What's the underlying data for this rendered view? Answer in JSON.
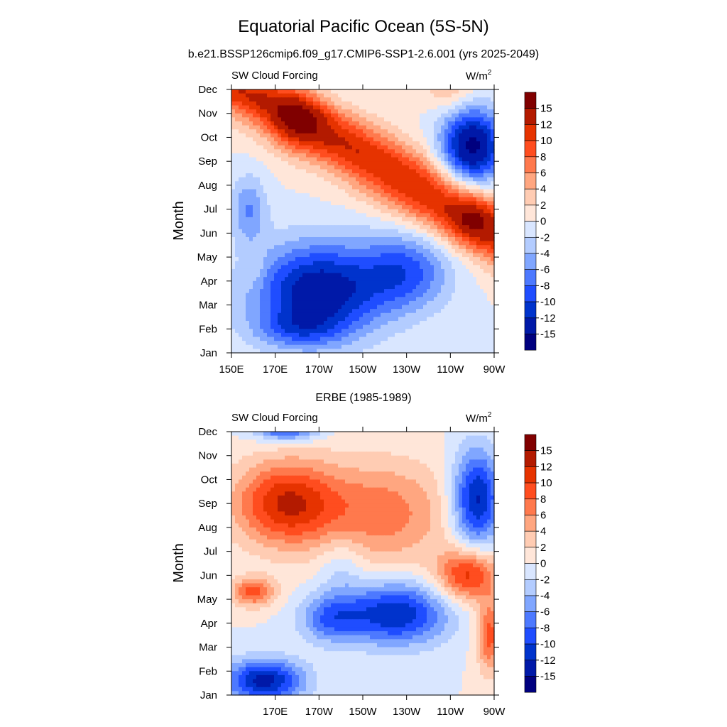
{
  "figure": {
    "title": "Equatorial Pacific Ocean (5S-5N)",
    "colorbar_labels": [
      "15",
      "12",
      "10",
      "8",
      "6",
      "4",
      "2",
      "0",
      "-2",
      "-4",
      "-6",
      "-8",
      "-10",
      "-12",
      "-15"
    ],
    "colors": [
      "#00007f",
      "#0019a8",
      "#0033cc",
      "#1f4dff",
      "#4d79ff",
      "#80a6ff",
      "#b3ccff",
      "#d9e6ff",
      "#ffe6d9",
      "#ffccb3",
      "#ffa680",
      "#ff794d",
      "#ff4d1f",
      "#e63300",
      "#b31a00",
      "#800000"
    ]
  },
  "chart_data": [
    {
      "type": "heatmap",
      "title": "b.e21.BSSP126cmip6.f09_g17.CMIP6-SSP1-2.6.001 (yrs 2025-2049)",
      "left_label": "SW Cloud Forcing",
      "units_label": "W/m",
      "units_sup": "2",
      "ylabel": "Month",
      "x_ticks": [
        "150E",
        "170E",
        "170W",
        "150W",
        "130W",
        "110W",
        "90W"
      ],
      "y_ticks": [
        "Jan",
        "Feb",
        "Mar",
        "Apr",
        "May",
        "Jun",
        "Jul",
        "Aug",
        "Sep",
        "Oct",
        "Nov",
        "Dec"
      ],
      "x_range_lon": [
        150,
        270
      ],
      "levels": [
        -15,
        -12,
        -10,
        -8,
        -6,
        -4,
        -2,
        0,
        2,
        4,
        6,
        8,
        10,
        12,
        15
      ],
      "features": [
        {
          "kind": "warm_band",
          "lon": [
            152,
            177,
            200,
            225,
            247,
            270
          ],
          "month": [
            11.0,
            10.0,
            8.8,
            7.5,
            6.2,
            5.0
          ],
          "width_lon": 28,
          "amp": 12
        },
        {
          "kind": "blob",
          "lon": 180,
          "month": 9.8,
          "rx": 12,
          "ry": 1.3,
          "amp": 6
        },
        {
          "kind": "blob",
          "lon": 260,
          "month": 5.6,
          "rx": 10,
          "ry": 1.0,
          "amp": 5
        },
        {
          "kind": "blob",
          "lon": 250,
          "month": 11.0,
          "rx": 12,
          "ry": 0.9,
          "amp": 4
        },
        {
          "kind": "blob",
          "lon": 190,
          "month": 2.6,
          "rx": 30,
          "ry": 2.0,
          "amp": -14
        },
        {
          "kind": "blob",
          "lon": 230,
          "month": 3.4,
          "rx": 20,
          "ry": 1.6,
          "amp": -8
        },
        {
          "kind": "blob",
          "lon": 180,
          "month": 1.0,
          "rx": 20,
          "ry": 0.8,
          "amp": -5
        },
        {
          "kind": "blob",
          "lon": 260,
          "month": 8.6,
          "rx": 14,
          "ry": 1.6,
          "amp": -16
        },
        {
          "kind": "blob",
          "lon": 158,
          "month": 6.0,
          "rx": 8,
          "ry": 1.4,
          "amp": -6
        },
        {
          "kind": "blob",
          "lon": 160,
          "month": 3.5,
          "rx": 6,
          "ry": 0.8,
          "amp": 2
        }
      ]
    },
    {
      "type": "heatmap",
      "title": "ERBE (1985-1989)",
      "left_label": "SW Cloud Forcing",
      "units_label": "W/m",
      "units_sup": "2",
      "ylabel": "Month",
      "x_ticks": [
        "170E",
        "170W",
        "150W",
        "130W",
        "110W",
        "90W"
      ],
      "y_ticks": [
        "Jan",
        "Feb",
        "Mar",
        "Apr",
        "May",
        "Jun",
        "Jul",
        "Aug",
        "Sep",
        "Oct",
        "Nov",
        "Dec"
      ],
      "x_range_lon": [
        150,
        270
      ],
      "levels": [
        -15,
        -12,
        -10,
        -8,
        -6,
        -4,
        -2,
        0,
        2,
        4,
        6,
        8,
        10,
        12,
        15
      ],
      "features": [
        {
          "kind": "blob",
          "lon": 175,
          "month": 8.0,
          "rx": 24,
          "ry": 1.8,
          "amp": 12
        },
        {
          "kind": "blob",
          "lon": 220,
          "month": 7.6,
          "rx": 30,
          "ry": 2.2,
          "amp": 7
        },
        {
          "kind": "blob",
          "lon": 160,
          "month": 4.3,
          "rx": 10,
          "ry": 0.6,
          "amp": 9
        },
        {
          "kind": "blob",
          "lon": 258,
          "month": 5.0,
          "rx": 14,
          "ry": 1.1,
          "amp": 11
        },
        {
          "kind": "blob",
          "lon": 268,
          "month": 2.5,
          "rx": 6,
          "ry": 1.5,
          "amp": 9
        },
        {
          "kind": "blob",
          "lon": 225,
          "month": 3.4,
          "rx": 24,
          "ry": 1.3,
          "amp": -12
        },
        {
          "kind": "blob",
          "lon": 195,
          "month": 3.2,
          "rx": 14,
          "ry": 1.0,
          "amp": -7
        },
        {
          "kind": "blob",
          "lon": 165,
          "month": 0.6,
          "rx": 18,
          "ry": 0.9,
          "amp": -13
        },
        {
          "kind": "blob",
          "lon": 175,
          "month": 11.3,
          "rx": 14,
          "ry": 0.6,
          "amp": -13
        },
        {
          "kind": "blob",
          "lon": 262,
          "month": 8.2,
          "rx": 11,
          "ry": 2.0,
          "amp": -13
        },
        {
          "kind": "blob",
          "lon": 200,
          "month": 5.4,
          "rx": 10,
          "ry": 1.3,
          "amp": -3
        }
      ]
    }
  ]
}
